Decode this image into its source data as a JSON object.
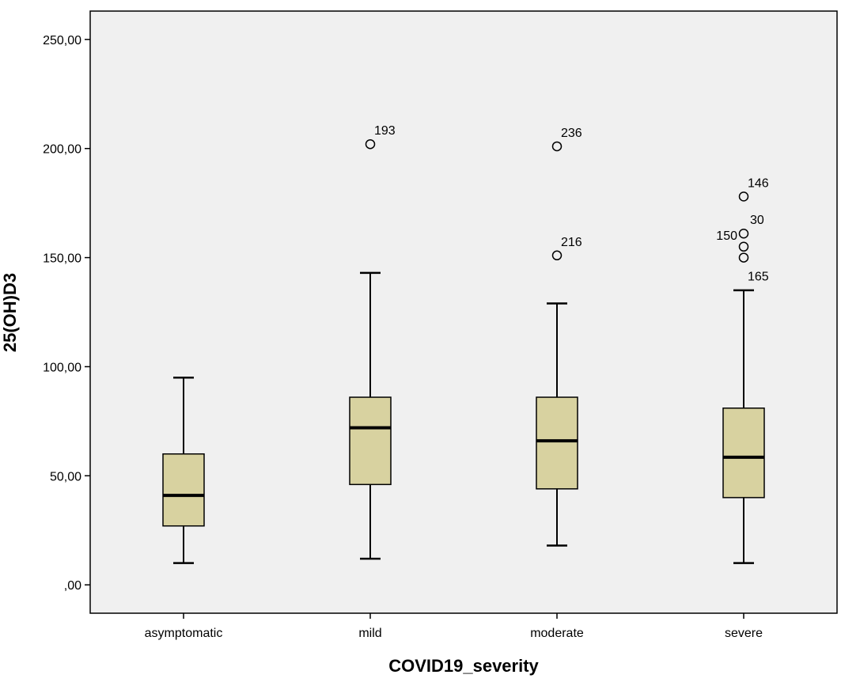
{
  "chart_data": {
    "type": "boxplot",
    "xlabel": "COVID19_severity",
    "ylabel": "25(OH)D3",
    "ylim": [
      -13,
      263
    ],
    "yticks": [
      0,
      50,
      100,
      150,
      200,
      250
    ],
    "ytick_labels": [
      ",00",
      "50,00",
      "100,00",
      "150,00",
      "200,00",
      "250,00"
    ],
    "grid": false,
    "colors": {
      "plot_bg": "#F0F0F0",
      "box_fill": "#D8D2A0",
      "stroke": "#000000"
    },
    "categories": [
      "asymptomatic",
      "mild",
      "moderate",
      "severe"
    ],
    "boxes": [
      {
        "category": "asymptomatic",
        "whisker_low": 10,
        "q1": 27,
        "median": 41,
        "q3": 60,
        "whisker_high": 95,
        "outliers": []
      },
      {
        "category": "mild",
        "whisker_low": 12,
        "q1": 46,
        "median": 72,
        "q3": 86,
        "whisker_high": 143,
        "outliers": [
          {
            "value": 202,
            "label": "193"
          }
        ]
      },
      {
        "category": "moderate",
        "whisker_low": 18,
        "q1": 44,
        "median": 66,
        "q3": 86,
        "whisker_high": 129,
        "outliers": [
          {
            "value": 151,
            "label": "216"
          },
          {
            "value": 201,
            "label": "236"
          }
        ]
      },
      {
        "category": "severe",
        "whisker_low": 10,
        "q1": 40,
        "median": 58.5,
        "q3": 81,
        "whisker_high": 135,
        "outliers": [
          {
            "value": 178,
            "label": "146"
          },
          {
            "value": 161,
            "label": "30"
          },
          {
            "value": 155,
            "label": "150"
          },
          {
            "value": 150,
            "label": "165"
          }
        ]
      }
    ]
  }
}
